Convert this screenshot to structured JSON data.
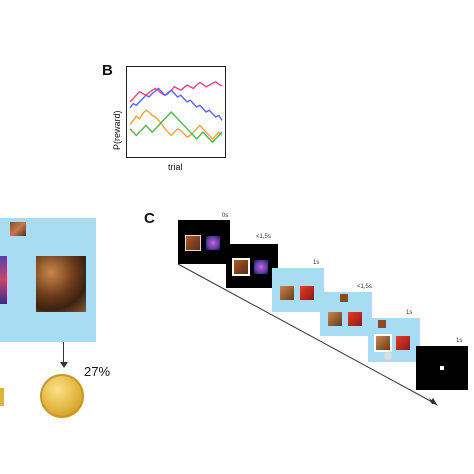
{
  "panel_b": {
    "letter": "B",
    "ylabel": "P(reward)",
    "xlabel": "trial",
    "chart_data": {
      "type": "line",
      "xlabel": "trial",
      "ylabel": "P(reward)",
      "grid": false,
      "legend": "none",
      "series": [
        {
          "color": "#e8457a",
          "values": [
            0.62,
            0.66,
            0.7,
            0.74,
            0.72,
            0.7,
            0.73,
            0.76,
            0.78,
            0.75,
            0.72,
            0.7,
            0.73,
            0.76,
            0.8,
            0.78,
            0.76,
            0.79,
            0.82,
            0.8,
            0.78,
            0.82,
            0.85,
            0.83,
            0.8,
            0.82,
            0.84,
            0.86,
            0.83,
            0.81
          ]
        },
        {
          "color": "#5a63e8",
          "values": [
            0.55,
            0.6,
            0.58,
            0.62,
            0.66,
            0.7,
            0.68,
            0.72,
            0.75,
            0.78,
            0.74,
            0.7,
            0.72,
            0.76,
            0.72,
            0.68,
            0.7,
            0.66,
            0.62,
            0.64,
            0.6,
            0.56,
            0.58,
            0.54,
            0.5,
            0.52,
            0.48,
            0.44,
            0.46,
            0.4
          ]
        },
        {
          "color": "#f2a23a",
          "values": [
            0.35,
            0.4,
            0.45,
            0.42,
            0.48,
            0.52,
            0.5,
            0.46,
            0.44,
            0.4,
            0.36,
            0.3,
            0.26,
            0.22,
            0.26,
            0.3,
            0.28,
            0.24,
            0.2,
            0.22,
            0.26,
            0.3,
            0.34,
            0.3,
            0.26,
            0.22,
            0.18,
            0.22,
            0.26,
            0.22
          ]
        },
        {
          "color": "#4cb84c",
          "values": [
            0.3,
            0.26,
            0.22,
            0.26,
            0.3,
            0.34,
            0.3,
            0.26,
            0.3,
            0.34,
            0.38,
            0.42,
            0.46,
            0.5,
            0.46,
            0.42,
            0.38,
            0.34,
            0.3,
            0.26,
            0.22,
            0.18,
            0.22,
            0.26,
            0.22,
            0.18,
            0.14,
            0.18,
            0.22,
            0.26
          ]
        }
      ]
    }
  },
  "panel_a": {
    "percentage": "27%"
  },
  "panel_c": {
    "letter": "C",
    "timings": [
      "0s",
      "<1,5s",
      "1s",
      "<1,5s",
      "1s",
      "1s"
    ],
    "colors": {
      "blue": "#a8dcf2",
      "black": "#000000"
    }
  }
}
